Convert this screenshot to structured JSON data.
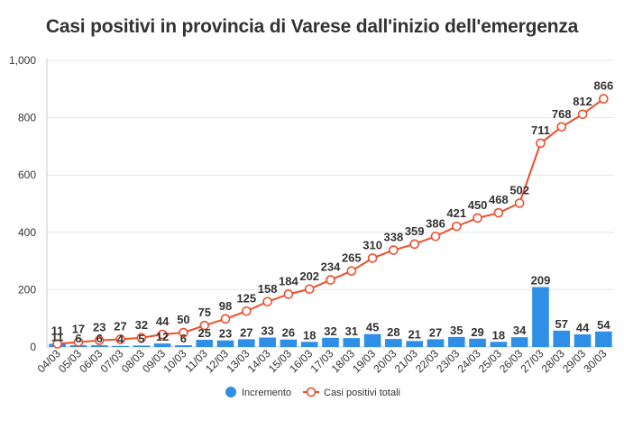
{
  "chart_data": {
    "type": "bar",
    "title": "Casi positivi in provincia di Varese dall'inizio dell'emergenza",
    "xlabel": "",
    "ylabel": "",
    "ylim": [
      0,
      1000
    ],
    "yticks": [
      "0",
      "200",
      "400",
      "600",
      "800",
      "1,000"
    ],
    "grid": true,
    "legend_position": "bottom",
    "categories": [
      "04/03",
      "05/03",
      "06/03",
      "07/03",
      "08/03",
      "09/03",
      "10/03",
      "11/03",
      "12/03",
      "13/03",
      "14/03",
      "15/03",
      "16/03",
      "17/03",
      "18/03",
      "19/03",
      "20/03",
      "21/03",
      "22/03",
      "23/03",
      "24/03",
      "25/03",
      "26/03",
      "27/03",
      "28/03",
      "29/03",
      "30/03"
    ],
    "series": [
      {
        "name": "Incremento",
        "type": "bar",
        "color": "#2f8fe6",
        "values": [
          11,
          6,
          6,
          4,
          5,
          12,
          6,
          25,
          23,
          27,
          33,
          26,
          18,
          32,
          31,
          45,
          28,
          21,
          27,
          35,
          29,
          18,
          34,
          209,
          57,
          44,
          54
        ]
      },
      {
        "name": "Casi positivi totali",
        "type": "line",
        "color": "#ee4e2b",
        "values": [
          11,
          17,
          23,
          27,
          32,
          44,
          50,
          75,
          98,
          125,
          158,
          184,
          202,
          234,
          265,
          310,
          338,
          359,
          386,
          421,
          450,
          468,
          502,
          711,
          768,
          812,
          866
        ]
      }
    ]
  }
}
